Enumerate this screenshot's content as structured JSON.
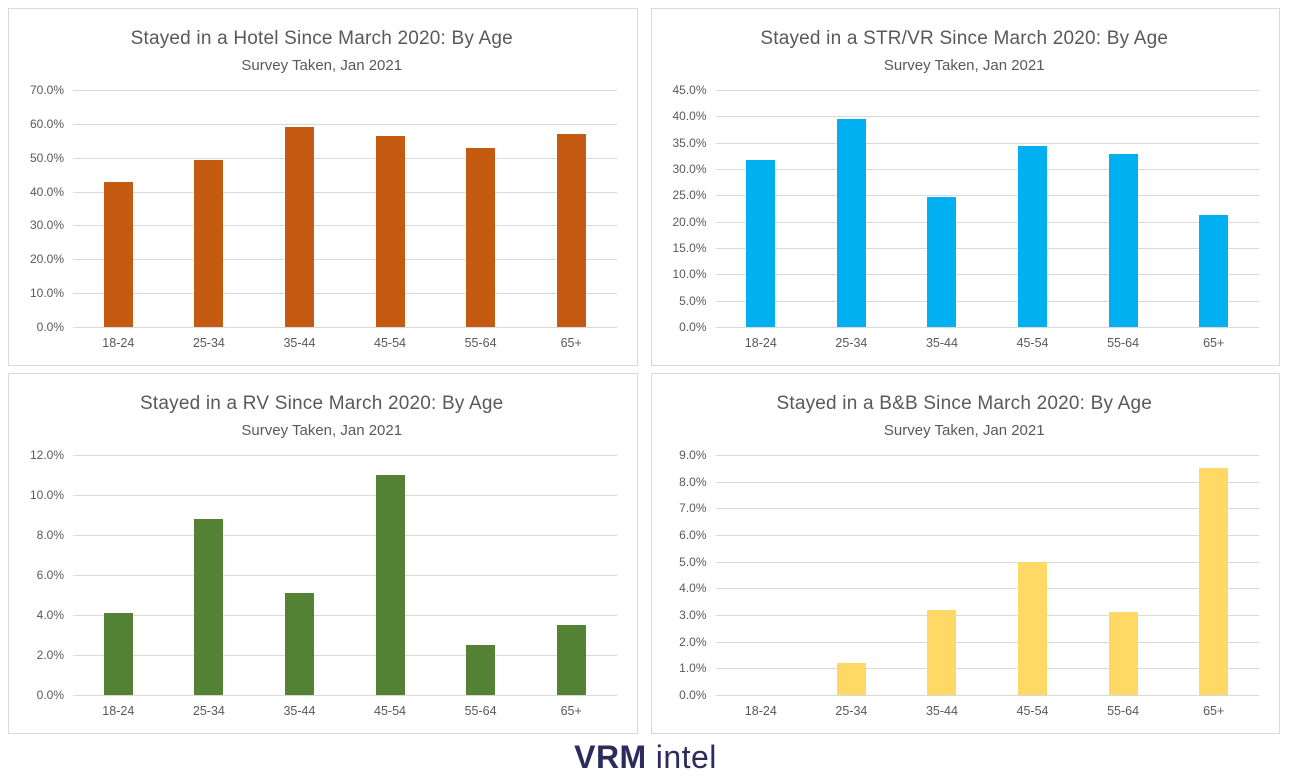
{
  "page": {
    "background": "#ffffff",
    "text_color": "#595959",
    "gridline_color": "#d9d9d9",
    "panel_border_color": "#d9d9d9"
  },
  "logo": {
    "brand_bold": "VRM",
    "brand_light": "intel",
    "color": "#2d2a5e"
  },
  "chart_data": [
    {
      "type": "bar",
      "title": "Stayed in a Hotel Since March 2020: By Age",
      "subtitle": "Survey Taken, Jan 2021",
      "categories": [
        "18-24",
        "25-34",
        "35-44",
        "45-54",
        "55-64",
        "65+"
      ],
      "values": [
        42.8,
        49.2,
        59.2,
        56.5,
        53.0,
        57.1
      ],
      "unit": "%",
      "xlabel": "",
      "ylabel": "",
      "ylim": [
        0,
        70
      ],
      "ytick_step": 10,
      "ytick_format": "one_decimal_percent",
      "bar_color": "#C55A11",
      "grid": true,
      "legend": false
    },
    {
      "type": "bar",
      "title": "Stayed in a STR/VR Since March 2020: By Age",
      "subtitle": "Survey Taken, Jan 2021",
      "categories": [
        "18-24",
        "25-34",
        "35-44",
        "45-54",
        "55-64",
        "65+"
      ],
      "values": [
        31.7,
        39.5,
        24.7,
        34.3,
        32.8,
        21.2
      ],
      "unit": "%",
      "xlabel": "",
      "ylabel": "",
      "ylim": [
        0,
        45
      ],
      "ytick_step": 5,
      "ytick_format": "one_decimal_percent",
      "bar_color": "#00B0F0",
      "grid": true,
      "legend": false
    },
    {
      "type": "bar",
      "title": "Stayed in a RV Since March 2020: By Age",
      "subtitle": "Survey Taken, Jan 2021",
      "categories": [
        "18-24",
        "25-34",
        "35-44",
        "45-54",
        "55-64",
        "65+"
      ],
      "values": [
        4.1,
        8.8,
        5.1,
        11.0,
        2.5,
        3.5
      ],
      "unit": "%",
      "xlabel": "",
      "ylabel": "",
      "ylim": [
        0,
        12
      ],
      "ytick_step": 2,
      "ytick_format": "one_decimal_percent",
      "bar_color": "#548235",
      "grid": true,
      "legend": false
    },
    {
      "type": "bar",
      "title": "Stayed in a B&B Since March 2020: By Age",
      "subtitle": "Survey Taken, Jan 2021",
      "categories": [
        "18-24",
        "25-34",
        "35-44",
        "45-54",
        "55-64",
        "65+"
      ],
      "values": [
        0,
        1.2,
        3.2,
        5.0,
        3.1,
        8.5
      ],
      "unit": "%",
      "xlabel": "",
      "ylabel": "",
      "ylim": [
        0,
        9
      ],
      "ytick_step": 1,
      "ytick_format": "one_decimal_percent",
      "bar_color": "#FFD966",
      "grid": true,
      "legend": false
    }
  ]
}
